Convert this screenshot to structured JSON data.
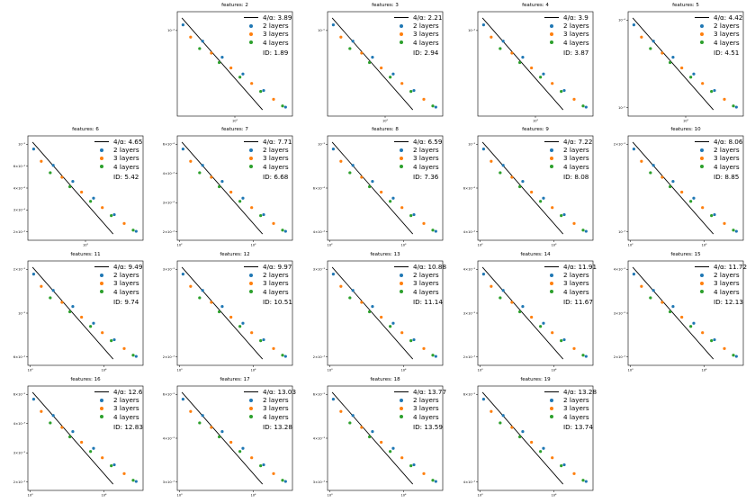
{
  "colors": {
    "fit_line": "#000000",
    "series_2": "#1f77b4",
    "series_3": "#ff7f0e",
    "series_4": "#2ca02c"
  },
  "chart_data": [
    {
      "type": "scatter",
      "title": "features: 2",
      "fit_label": "4/α: 3.89",
      "id_label": "ID: 1.89",
      "series": [
        {
          "name": "2 layers"
        },
        {
          "name": "3 layers"
        },
        {
          "name": "4 layers"
        }
      ],
      "y_tick_labels": [
        "10⁻⁴"
      ],
      "x_tick_labels": [
        "10²"
      ]
    },
    {
      "type": "scatter",
      "title": "features: 3",
      "fit_label": "4/α: 2.21",
      "id_label": "ID: 2.94",
      "series": [
        {
          "name": "2 layers"
        },
        {
          "name": "3 layers"
        },
        {
          "name": "4 layers"
        }
      ],
      "y_tick_labels": [
        "10⁻⁵"
      ],
      "x_tick_labels": [
        "10²"
      ]
    },
    {
      "type": "scatter",
      "title": "features: 4",
      "fit_label": "4/α: 3.9",
      "id_label": "ID: 3.87",
      "series": [
        {
          "name": "2 layers"
        },
        {
          "name": "3 layers"
        },
        {
          "name": "4 layers"
        }
      ],
      "y_tick_labels": [
        "10⁻⁴"
      ],
      "x_tick_labels": [
        "10²"
      ]
    },
    {
      "type": "scatter",
      "title": "features: 5",
      "fit_label": "4/α: 4.42",
      "id_label": "ID: 4.51",
      "series": [
        {
          "name": "2 layers"
        },
        {
          "name": "3 layers"
        },
        {
          "name": "4 layers"
        }
      ],
      "y_tick_labels": [
        "10⁻⁴",
        "10⁻⁵"
      ],
      "x_tick_labels": [
        "10²"
      ]
    },
    {
      "type": "scatter",
      "title": "features: 6",
      "fit_label": "4/α: 4.65",
      "id_label": "ID: 5.42",
      "series": [
        {
          "name": "2 layers"
        },
        {
          "name": "3 layers"
        },
        {
          "name": "4 layers"
        }
      ],
      "y_tick_labels": [
        "10⁻³",
        "6×10⁻⁴",
        "4×10⁻⁴",
        "3×10⁻⁴",
        "2×10⁻⁴"
      ],
      "x_tick_labels": [
        "10²"
      ]
    },
    {
      "type": "scatter",
      "title": "features: 7",
      "fit_label": "4/α: 7.71",
      "id_label": "ID: 6.68",
      "series": [
        {
          "name": "2 layers"
        },
        {
          "name": "3 layers"
        },
        {
          "name": "4 layers"
        }
      ],
      "y_tick_labels": [
        "6×10⁻⁴",
        "4×10⁻⁴",
        "3×10⁻⁴",
        "2×10⁻⁴"
      ],
      "x_tick_labels": [
        "10²",
        "10³"
      ]
    },
    {
      "type": "scatter",
      "title": "features: 8",
      "fit_label": "4/α: 6.59",
      "id_label": "ID: 7.36",
      "series": [
        {
          "name": "2 layers"
        },
        {
          "name": "3 layers"
        },
        {
          "name": "4 layers"
        }
      ],
      "y_tick_labels": [
        "10⁻³",
        "6×10⁻⁴",
        "4×10⁻⁴"
      ],
      "x_tick_labels": [
        "10²",
        "10³"
      ]
    },
    {
      "type": "scatter",
      "title": "features: 9",
      "fit_label": "4/α: 7.22",
      "id_label": "ID: 8.08",
      "series": [
        {
          "name": "2 layers"
        },
        {
          "name": "3 layers"
        },
        {
          "name": "4 layers"
        }
      ],
      "y_tick_labels": [
        "10⁻³",
        "6×10⁻⁴",
        "4×10⁻⁴"
      ],
      "x_tick_labels": [
        "10²",
        "10³"
      ]
    },
    {
      "type": "scatter",
      "title": "features: 10",
      "fit_label": "4/α: 8.06",
      "id_label": "ID: 8.85",
      "series": [
        {
          "name": "2 layers"
        },
        {
          "name": "3 layers"
        },
        {
          "name": "4 layers"
        }
      ],
      "y_tick_labels": [
        "2×10⁻³",
        "10⁻³"
      ],
      "x_tick_labels": [
        "10²",
        "10³"
      ]
    },
    {
      "type": "scatter",
      "title": "features: 11",
      "fit_label": "4/α: 9.49",
      "id_label": "ID: 9.74",
      "series": [
        {
          "name": "2 layers"
        },
        {
          "name": "3 layers"
        },
        {
          "name": "4 layers"
        }
      ],
      "y_tick_labels": [
        "2×10⁻³",
        "10⁻³",
        "6×10⁻⁴"
      ],
      "x_tick_labels": [
        "10³",
        "10⁴"
      ]
    },
    {
      "type": "scatter",
      "title": "features: 12",
      "fit_label": "4/α: 9.97",
      "id_label": "ID: 10.51",
      "series": [
        {
          "name": "2 layers"
        },
        {
          "name": "3 layers"
        },
        {
          "name": "4 layers"
        }
      ],
      "y_tick_labels": [
        "3×10⁻³",
        "2×10⁻³"
      ],
      "x_tick_labels": [
        "10³",
        "10⁴"
      ]
    },
    {
      "type": "scatter",
      "title": "features: 13",
      "fit_label": "4/α: 10.88",
      "id_label": "ID: 11.14",
      "series": [
        {
          "name": "2 layers"
        },
        {
          "name": "3 layers"
        },
        {
          "name": "4 layers"
        }
      ],
      "y_tick_labels": [
        "3×10⁻³",
        "2×10⁻³"
      ],
      "x_tick_labels": [
        "10³",
        "10⁴"
      ]
    },
    {
      "type": "scatter",
      "title": "features: 14",
      "fit_label": "4/α: 11.91",
      "id_label": "ID: 11.67",
      "series": [
        {
          "name": "2 layers"
        },
        {
          "name": "3 layers"
        },
        {
          "name": "4 layers"
        }
      ],
      "y_tick_labels": [
        "4×10⁻³",
        "3×10⁻³",
        "2×10⁻³"
      ],
      "x_tick_labels": [
        "10³",
        "10⁴"
      ]
    },
    {
      "type": "scatter",
      "title": "features: 15",
      "fit_label": "4/α: 11.72",
      "id_label": "ID: 12.13",
      "series": [
        {
          "name": "2 layers"
        },
        {
          "name": "3 layers"
        },
        {
          "name": "4 layers"
        }
      ],
      "y_tick_labels": [
        "4×10⁻³",
        "3×10⁻³",
        "2×10⁻³"
      ],
      "x_tick_labels": [
        "10³",
        "10⁴"
      ]
    },
    {
      "type": "scatter",
      "title": "features: 16",
      "fit_label": "4/α: 12.6",
      "id_label": "ID: 12.83",
      "series": [
        {
          "name": "2 layers"
        },
        {
          "name": "3 layers"
        },
        {
          "name": "4 layers"
        }
      ],
      "y_tick_labels": [
        "6×10⁻³",
        "4×10⁻³",
        "3×10⁻³",
        "2×10⁻³"
      ],
      "x_tick_labels": [
        "10³",
        "10⁴"
      ]
    },
    {
      "type": "scatter",
      "title": "features: 17",
      "fit_label": "4/α: 13.03",
      "id_label": "ID: 13.28",
      "series": [
        {
          "name": "2 layers"
        },
        {
          "name": "3 layers"
        },
        {
          "name": "4 layers"
        }
      ],
      "y_tick_labels": [
        "6×10⁻³",
        "4×10⁻³",
        "3×10⁻³"
      ],
      "x_tick_labels": [
        "10³",
        "10⁴"
      ]
    },
    {
      "type": "scatter",
      "title": "features: 18",
      "fit_label": "4/α: 13.77",
      "id_label": "ID: 13.59",
      "series": [
        {
          "name": "2 layers"
        },
        {
          "name": "3 layers"
        },
        {
          "name": "4 layers"
        }
      ],
      "y_tick_labels": [
        "6×10⁻³",
        "4×10⁻³",
        "3×10⁻³"
      ],
      "x_tick_labels": [
        "10³",
        "10⁴"
      ]
    },
    {
      "type": "scatter",
      "title": "features: 19",
      "fit_label": "4/α: 13.28",
      "id_label": "ID: 13.74",
      "series": [
        {
          "name": "2 layers"
        },
        {
          "name": "3 layers"
        },
        {
          "name": "4 layers"
        }
      ],
      "y_tick_labels": [
        "6×10⁻³",
        "4×10⁻³"
      ],
      "x_tick_labels": [
        "10³",
        "10⁴"
      ]
    }
  ]
}
